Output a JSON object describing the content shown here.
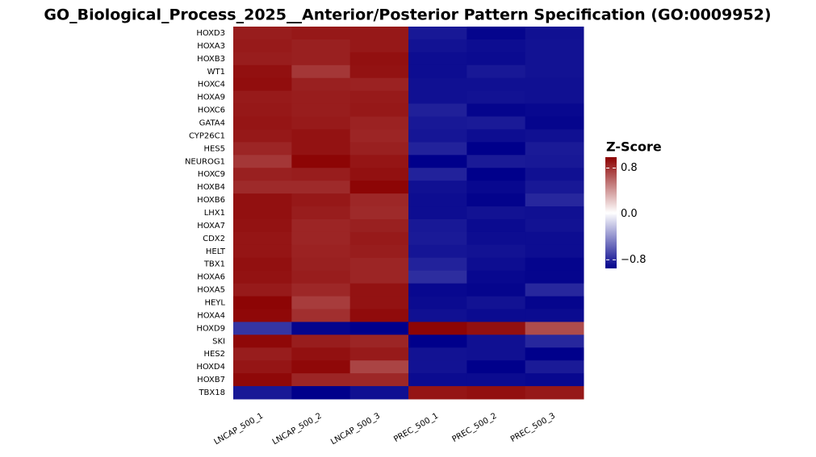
{
  "chart_data": {
    "type": "heatmap",
    "title": "GO_Biological_Process_2025__Anterior/Posterior Pattern Specification (GO:0009952)",
    "columns": [
      "LNCAP_500_1",
      "LNCAP_500_2",
      "LNCAP_500_3",
      "PREC_500_1",
      "PREC_500_2",
      "PREC_500_3"
    ],
    "rows": [
      "HOXD3",
      "HOXA3",
      "HOXB3",
      "WT1",
      "HOXC4",
      "HOXA9",
      "HOXC6",
      "GATA4",
      "CYP26C1",
      "HES5",
      "NEUROG1",
      "HOXC9",
      "HOXB4",
      "HOXB6",
      "LHX1",
      "HOXA7",
      "CDX2",
      "HELT",
      "TBX1",
      "HOXA6",
      "HOXA5",
      "HEYL",
      "HOXA4",
      "HOXD9",
      "SKI",
      "HES2",
      "HOXD4",
      "HOXB7",
      "TBX18"
    ],
    "values": [
      [
        0.88,
        0.9,
        0.9,
        -0.86,
        -0.93,
        -0.89
      ],
      [
        0.89,
        0.87,
        0.9,
        -0.88,
        -0.9,
        -0.88
      ],
      [
        0.88,
        0.87,
        0.93,
        -0.9,
        -0.91,
        -0.88
      ],
      [
        0.93,
        0.78,
        0.92,
        -0.9,
        -0.86,
        -0.88
      ],
      [
        0.94,
        0.87,
        0.86,
        -0.89,
        -0.89,
        -0.89
      ],
      [
        0.89,
        0.88,
        0.89,
        -0.89,
        -0.88,
        -0.89
      ],
      [
        0.9,
        0.88,
        0.9,
        -0.83,
        -0.93,
        -0.92
      ],
      [
        0.91,
        0.89,
        0.86,
        -0.86,
        -0.85,
        -0.93
      ],
      [
        0.9,
        0.92,
        0.85,
        -0.87,
        -0.9,
        -0.89
      ],
      [
        0.85,
        0.92,
        0.87,
        -0.82,
        -0.96,
        -0.85
      ],
      [
        0.78,
        0.97,
        0.91,
        -0.95,
        -0.85,
        -0.86
      ],
      [
        0.87,
        0.88,
        0.93,
        -0.82,
        -0.96,
        -0.89
      ],
      [
        0.83,
        0.83,
        0.97,
        -0.89,
        -0.92,
        -0.86
      ],
      [
        0.93,
        0.9,
        0.84,
        -0.9,
        -0.94,
        -0.8
      ],
      [
        0.93,
        0.88,
        0.83,
        -0.9,
        -0.88,
        -0.89
      ],
      [
        0.92,
        0.85,
        0.87,
        -0.86,
        -0.91,
        -0.88
      ],
      [
        0.91,
        0.85,
        0.89,
        -0.85,
        -0.9,
        -0.9
      ],
      [
        0.91,
        0.86,
        0.88,
        -0.87,
        -0.88,
        -0.9
      ],
      [
        0.93,
        0.87,
        0.85,
        -0.82,
        -0.9,
        -0.93
      ],
      [
        0.92,
        0.88,
        0.85,
        -0.78,
        -0.92,
        -0.93
      ],
      [
        0.89,
        0.84,
        0.92,
        -0.92,
        -0.93,
        -0.8
      ],
      [
        0.97,
        0.76,
        0.92,
        -0.91,
        -0.88,
        -0.93
      ],
      [
        0.96,
        0.81,
        0.95,
        -0.89,
        -0.91,
        -0.91
      ],
      [
        -0.75,
        -0.93,
        -0.98,
        0.97,
        0.93,
        0.7
      ],
      [
        0.96,
        0.88,
        0.85,
        -0.99,
        -0.89,
        -0.8
      ],
      [
        0.88,
        0.93,
        0.89,
        -0.88,
        -0.89,
        -0.95
      ],
      [
        0.91,
        0.96,
        0.73,
        -0.88,
        -0.98,
        -0.85
      ],
      [
        0.96,
        0.85,
        0.84,
        -0.91,
        -0.91,
        -0.92
      ],
      [
        -0.86,
        -0.99,
        -0.89,
        0.91,
        0.93,
        0.9
      ]
    ],
    "colors": [
      "#00008b",
      "#ffffff",
      "#8b0000"
    ],
    "colorbar": {
      "title": "Z-Score",
      "lim": [
        -0.95,
        0.99
      ],
      "ticks": [
        0.8,
        {
          "value": 0,
          "label": "0.0"
        },
        {
          "value": -0.8,
          "label": "−0.8"
        }
      ]
    }
  }
}
